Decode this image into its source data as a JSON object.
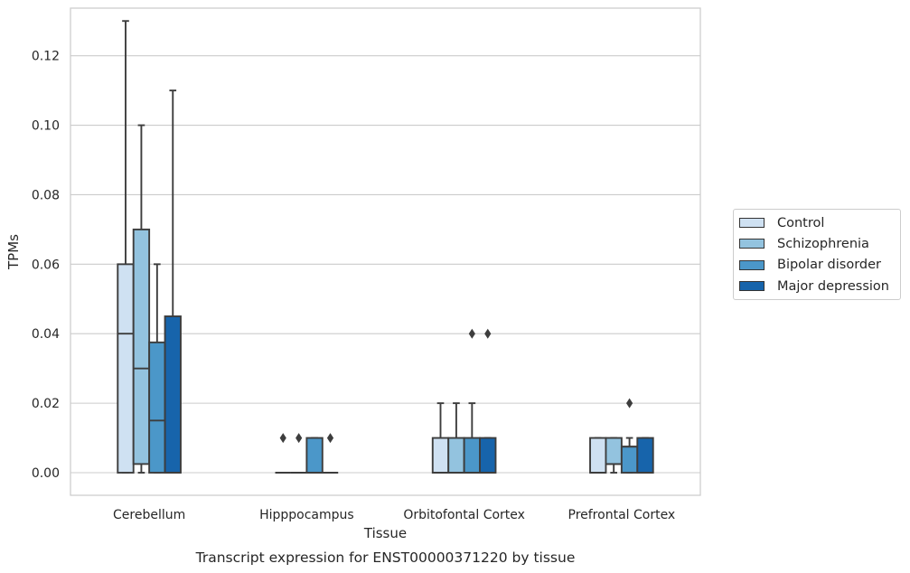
{
  "chart_data": {
    "type": "box",
    "caption": "Transcript expression for ENST00000371220 by tissue",
    "xlabel": "Tissue",
    "ylabel": "TPMs",
    "ylim": [
      -0.0065,
      0.1337
    ],
    "yticks": [
      0.0,
      0.02,
      0.04,
      0.06,
      0.08,
      0.1,
      0.12
    ],
    "ytick_labels": [
      "0.00",
      "0.02",
      "0.04",
      "0.06",
      "0.08",
      "0.10",
      "0.12"
    ],
    "grid": "horizontal",
    "legend_position": "right",
    "categories": [
      "Cerebellum",
      "Hipppocampus",
      "Orbitofontal Cortex",
      "Prefrontal Cortex"
    ],
    "series": [
      {
        "name": "Control",
        "color": "#cfe1f2",
        "boxes": [
          {
            "q1": 0.0,
            "median": 0.04,
            "q3": 0.06,
            "whisker_low": 0.0,
            "whisker_high": 0.13,
            "outliers": []
          },
          {
            "q1": 0.0,
            "median": 0.0,
            "q3": 0.0,
            "whisker_low": 0.0,
            "whisker_high": 0.0,
            "outliers": [
              0.01
            ]
          },
          {
            "q1": 0.0,
            "median": 0.0,
            "q3": 0.01,
            "whisker_low": 0.0,
            "whisker_high": 0.02,
            "outliers": []
          },
          {
            "q1": 0.0,
            "median": 0.0,
            "q3": 0.01,
            "whisker_low": 0.0,
            "whisker_high": 0.01,
            "outliers": []
          }
        ]
      },
      {
        "name": "Schizophrenia",
        "color": "#93c3df",
        "boxes": [
          {
            "q1": 0.0025,
            "median": 0.03,
            "q3": 0.07,
            "whisker_low": 0.0,
            "whisker_high": 0.1,
            "outliers": []
          },
          {
            "q1": 0.0,
            "median": 0.0,
            "q3": 0.0,
            "whisker_low": 0.0,
            "whisker_high": 0.0,
            "outliers": [
              0.01
            ]
          },
          {
            "q1": 0.0,
            "median": 0.0,
            "q3": 0.01,
            "whisker_low": 0.0,
            "whisker_high": 0.02,
            "outliers": []
          },
          {
            "q1": 0.0025,
            "median": 0.0025,
            "q3": 0.01,
            "whisker_low": 0.0,
            "whisker_high": 0.01,
            "outliers": []
          }
        ]
      },
      {
        "name": "Bipolar disorder",
        "color": "#4b97c9",
        "boxes": [
          {
            "q1": 0.0,
            "median": 0.015,
            "q3": 0.0375,
            "whisker_low": 0.0,
            "whisker_high": 0.06,
            "outliers": []
          },
          {
            "q1": 0.0,
            "median": 0.0,
            "q3": 0.01,
            "whisker_low": 0.0,
            "whisker_high": 0.01,
            "outliers": []
          },
          {
            "q1": 0.0,
            "median": 0.0,
            "q3": 0.01,
            "whisker_low": 0.0,
            "whisker_high": 0.02,
            "outliers": [
              0.04
            ]
          },
          {
            "q1": 0.0,
            "median": 0.0075,
            "q3": 0.0075,
            "whisker_low": 0.0,
            "whisker_high": 0.01,
            "outliers": [
              0.02
            ]
          }
        ]
      },
      {
        "name": "Major depression",
        "color": "#1764ab",
        "boxes": [
          {
            "q1": 0.0,
            "median": 0.0,
            "q3": 0.045,
            "whisker_low": 0.0,
            "whisker_high": 0.11,
            "outliers": []
          },
          {
            "q1": 0.0,
            "median": 0.0,
            "q3": 0.0,
            "whisker_low": 0.0,
            "whisker_high": 0.0,
            "outliers": [
              0.01
            ]
          },
          {
            "q1": 0.0,
            "median": 0.0,
            "q3": 0.01,
            "whisker_low": 0.0,
            "whisker_high": 0.01,
            "outliers": [
              0.04
            ]
          },
          {
            "q1": 0.0,
            "median": 0.0,
            "q3": 0.01,
            "whisker_low": 0.0,
            "whisker_high": 0.01,
            "outliers": []
          }
        ]
      }
    ]
  }
}
